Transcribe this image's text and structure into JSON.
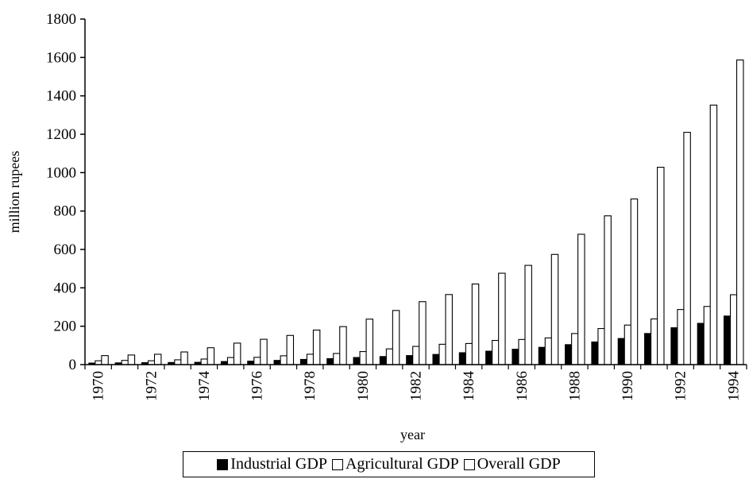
{
  "chart_data": {
    "type": "bar",
    "title": "",
    "xlabel": "year",
    "ylabel": "million rupees",
    "ylim": [
      0,
      1800
    ],
    "yticks": [
      "0",
      "200",
      "400",
      "600",
      "800",
      "1000",
      "1200",
      "1400",
      "1600",
      "1800"
    ],
    "xtick_labels": [
      "1970",
      "1972",
      "1974",
      "1976",
      "1978",
      "1980",
      "1982",
      "1984",
      "1986",
      "1988",
      "1990",
      "1992",
      "1994"
    ],
    "categories": [
      "1970",
      "1971",
      "1972",
      "1973",
      "1974",
      "1975",
      "1976",
      "1977",
      "1978",
      "1979",
      "1980",
      "1981",
      "1982",
      "1983",
      "1984",
      "1985",
      "1986",
      "1987",
      "1988",
      "1989",
      "1990",
      "1991",
      "1992",
      "1993",
      "1994"
    ],
    "grid": false,
    "legend_position": "bottom",
    "series": [
      {
        "name": "Industrial GDP",
        "color": "#000000",
        "values": [
          8,
          9,
          10,
          11,
          12,
          16,
          18,
          22,
          27,
          31,
          37,
          42,
          47,
          53,
          62,
          70,
          80,
          90,
          104,
          118,
          136,
          162,
          192,
          215,
          253
        ]
      },
      {
        "name": "Agricultural GDP",
        "color": "#ffffff",
        "values": [
          20,
          22,
          20,
          25,
          29,
          37,
          38,
          46,
          54,
          58,
          68,
          82,
          95,
          106,
          110,
          126,
          131,
          139,
          162,
          188,
          206,
          238,
          287,
          303,
          364
        ]
      },
      {
        "name": "Overall GDP",
        "color": "#ffffff",
        "values": [
          47,
          50,
          54,
          66,
          88,
          112,
          132,
          152,
          180,
          198,
          237,
          282,
          328,
          365,
          420,
          476,
          517,
          574,
          679,
          775,
          863,
          1028,
          1210,
          1352,
          1587
        ]
      }
    ]
  }
}
